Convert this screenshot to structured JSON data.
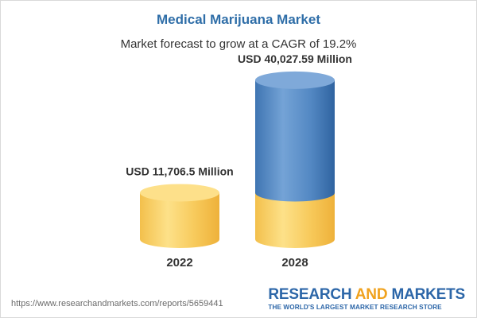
{
  "header": {
    "title": "Medical Marijuana Market",
    "subtitle": "Market forecast to grow at a CAGR of 19.2%"
  },
  "chart_data": {
    "type": "bar",
    "title": "Medical Marijuana Market",
    "subtitle": "Market forecast to grow at a CAGR of 19.2%",
    "categories": [
      "2022",
      "2028"
    ],
    "values": [
      11706.5,
      40027.59
    ],
    "value_labels": [
      "USD 11,706.5 Million",
      "USD 40,027.59 Million"
    ],
    "unit": "USD Million",
    "xlabel": "",
    "ylabel": "",
    "grid": false,
    "style": "3d-cylinder",
    "colors": {
      "base_segment": "#f5c451",
      "growth_segment": "#4f86c0"
    }
  },
  "footer": {
    "url": "https://www.researchandmarkets.com/reports/5659441",
    "brand_word1": "RESEARCH",
    "brand_word2": "AND",
    "brand_word3": "MARKETS",
    "brand_tagline": "THE WORLD'S LARGEST MARKET RESEARCH STORE"
  }
}
